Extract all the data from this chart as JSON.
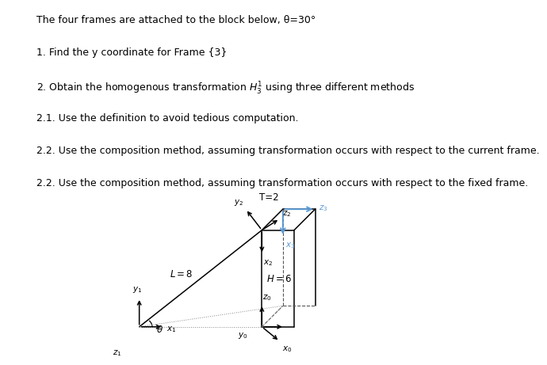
{
  "lines": [
    "The four frames are attached to the block below, θ=30°",
    "1. Find the y coordinate for Frame {3}",
    "2. Obtain the homogenous transformation $H_3^1$ using three different methods",
    "2.1. Use the definition to avoid tedious computation.",
    "2.2. Use the composition method, assuming transformation occurs with respect to the current frame.",
    "2.2. Use the composition method, assuming transformation occurs with respect to the fixed frame."
  ],
  "background_color": "#ffffff",
  "text_color": "#000000",
  "blue_color": "#5b9bd5",
  "gray_color": "#808080"
}
